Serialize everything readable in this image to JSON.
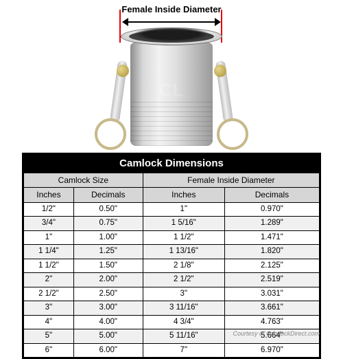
{
  "diagram": {
    "label": "Female Inside Diameter",
    "arrow_color": "#000000",
    "indicator_color": "#e20000",
    "watermark": "CL"
  },
  "table": {
    "title": "Camlock Dimensions",
    "group_headers": [
      "Camlock Size",
      "Female Inside Diameter"
    ],
    "columns": [
      "Inches",
      "Decimals",
      "Inches",
      "Decimals"
    ],
    "header_bg": "#d6d6d6",
    "title_bg": "#000000",
    "title_color": "#ffffff",
    "border_color": "#000000",
    "row_alt_bg": "#f0f0f0",
    "rows": [
      [
        "1/2\"",
        "0.50\"",
        "1\"",
        "0.970\""
      ],
      [
        "3/4\"",
        "0.75\"",
        "1 5/16\"",
        "1.289\""
      ],
      [
        "1\"",
        "1.00\"",
        "1 1/2\"",
        "1.471\""
      ],
      [
        "1 1/4\"",
        "1.25\"",
        "1 13/16\"",
        "1.820\""
      ],
      [
        "1 1/2\"",
        "1.50\"",
        "2 1/8\"",
        "2.125\""
      ],
      [
        "2\"",
        "2.00\"",
        "2 1/2\"",
        "2.519\""
      ],
      [
        "2 1/2\"",
        "2.50\"",
        "3\"",
        "3.031\""
      ],
      [
        "3\"",
        "3.00\"",
        "3 11/16\"",
        "3.661\""
      ],
      [
        "4\"",
        "4.00\"",
        "4 3/4\"",
        "4.763\""
      ],
      [
        "5\"",
        "5.00\"",
        "5 11/16\"",
        "5.664\""
      ],
      [
        "6\"",
        "6.00\"",
        "7\"",
        "6.970\""
      ]
    ]
  },
  "credit": "Courtesy of CamlockDirect.com"
}
